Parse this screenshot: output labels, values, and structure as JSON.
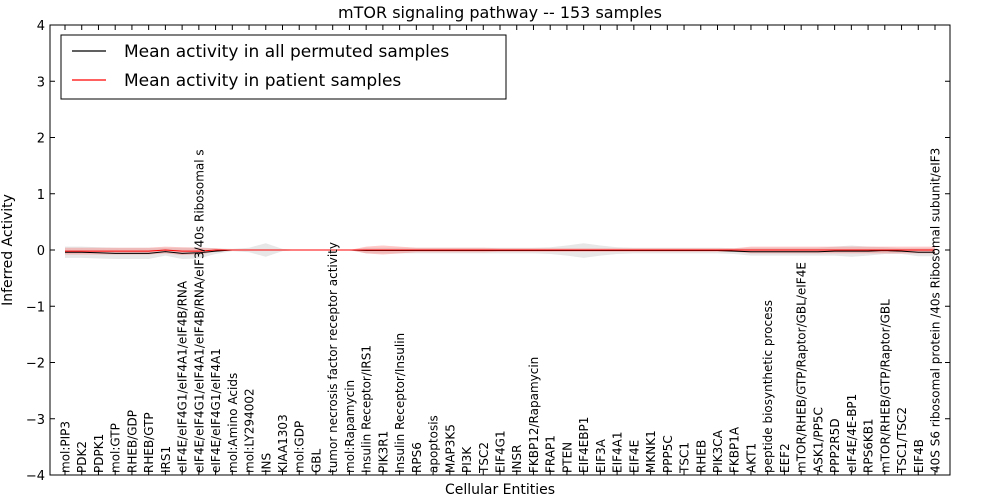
{
  "chart_data": {
    "type": "line",
    "title": "mTOR signaling pathway -- 153 samples",
    "xlabel": "Cellular Entities",
    "ylabel": "Inferred Activity",
    "ylim": [
      -4,
      4
    ],
    "yticks": [
      -4,
      -3,
      -2,
      -1,
      0,
      1,
      2,
      3,
      4
    ],
    "ytick_labels": [
      "−4",
      "−3",
      "−2",
      "−1",
      "0",
      "1",
      "2",
      "3",
      "4"
    ],
    "legend": {
      "placement": "top-left",
      "entries": [
        {
          "label": "Mean activity in all permuted samples",
          "color": "#000000"
        },
        {
          "label": "Mean activity in patient samples",
          "color": "#ff0000"
        }
      ]
    },
    "categories": [
      "mol:PIP3",
      "PDK2",
      "PDPK1",
      "mol:GTP",
      "RHEB/GDP",
      "RHEB/GTP",
      "IRS1",
      "eIF4E/eIF4G1/eIF4A1/eIF4B/RNA",
      "eIF4E/eIF4G1/eIF4A1/eIF4B/RNA/eIF3/40s Ribosomal s",
      "eIF4E/eIF4G1/eIF4A1",
      "mol:Amino Acids",
      "mol:LY294002",
      "INS",
      "KIAA1303",
      "mol:GDP",
      "GBL",
      "tumor necrosis factor receptor activity",
      "mol:Rapamycin",
      "Insulin Receptor/IRS1",
      "PIK3R1",
      "Insulin Receptor/Insulin",
      "RPS6",
      "apoptosis",
      "MAP3K5",
      "PI3K",
      "TSC2",
      "EIF4G1",
      "INSR",
      "FKBP12/Rapamycin",
      "FRAP1",
      "PTEN",
      "EIF4EBP1",
      "EIF3A",
      "EIF4A1",
      "EIF4E",
      "MKNK1",
      "PPP5C",
      "TSC1",
      "RHEB",
      "PIK3CA",
      "FKBP1A",
      "AKT1",
      "peptide biosynthetic process",
      "EEF2",
      "mTOR/RHEB/GTP/Raptor/GBL/eIF4E",
      "ASK1/PP5C",
      "PPP2R5D",
      "eIF4E/4E-BP1",
      "RPS6KB1",
      "mTOR/RHEB/GTP/Raptor/GBL",
      "TSC1/TSC2",
      "EIF4B",
      "40S S6 ribosomal protein /40s Ribosomal subunit/eIF3"
    ],
    "series": [
      {
        "name": "Mean activity in all permuted samples",
        "color": "#000000",
        "values": [
          -0.04,
          -0.04,
          -0.05,
          -0.06,
          -0.06,
          -0.06,
          -0.03,
          -0.06,
          -0.05,
          -0.02,
          0.0,
          0.0,
          0.0,
          0.0,
          0.0,
          0.0,
          0.0,
          0.0,
          -0.01,
          -0.01,
          -0.01,
          -0.01,
          -0.01,
          -0.01,
          -0.01,
          -0.01,
          -0.01,
          -0.01,
          -0.01,
          -0.01,
          -0.01,
          -0.01,
          -0.01,
          -0.01,
          -0.01,
          -0.01,
          -0.01,
          -0.01,
          -0.01,
          -0.01,
          -0.02,
          -0.03,
          -0.03,
          -0.03,
          -0.03,
          -0.03,
          -0.02,
          -0.02,
          -0.02,
          -0.01,
          -0.02,
          -0.04,
          -0.04
        ],
        "band": [
          0.1,
          0.1,
          0.1,
          0.1,
          0.1,
          0.1,
          0.07,
          0.1,
          0.1,
          0.05,
          0.02,
          0.04,
          0.12,
          0.02,
          0.0,
          0.0,
          0.0,
          0.0,
          0.05,
          0.05,
          0.05,
          0.05,
          0.05,
          0.05,
          0.05,
          0.05,
          0.05,
          0.05,
          0.05,
          0.06,
          0.09,
          0.13,
          0.09,
          0.06,
          0.05,
          0.05,
          0.05,
          0.05,
          0.05,
          0.05,
          0.05,
          0.07,
          0.07,
          0.07,
          0.07,
          0.07,
          0.08,
          0.1,
          0.08,
          0.06,
          0.05,
          0.07,
          0.07
        ]
      },
      {
        "name": "Mean activity in patient samples",
        "color": "#ff0000",
        "values": [
          -0.02,
          -0.02,
          -0.02,
          -0.02,
          -0.02,
          -0.02,
          0.0,
          -0.02,
          -0.02,
          0.0,
          0.0,
          0.0,
          0.0,
          0.0,
          0.0,
          0.0,
          0.0,
          0.0,
          0.0,
          0.0,
          0.0,
          0.0,
          0.0,
          0.0,
          0.0,
          0.0,
          0.0,
          0.0,
          0.0,
          0.0,
          0.0,
          0.0,
          0.0,
          0.0,
          0.0,
          0.0,
          0.0,
          0.0,
          0.0,
          0.0,
          0.0,
          0.0,
          0.0,
          0.0,
          0.0,
          0.0,
          0.0,
          0.0,
          0.0,
          0.0,
          0.0,
          0.0,
          0.0
        ],
        "band": [
          0.06,
          0.06,
          0.06,
          0.06,
          0.06,
          0.06,
          0.06,
          0.07,
          0.06,
          0.03,
          0.0,
          0.0,
          0.0,
          0.0,
          0.0,
          0.0,
          0.0,
          0.0,
          0.06,
          0.08,
          0.06,
          0.04,
          0.04,
          0.04,
          0.04,
          0.04,
          0.03,
          0.03,
          0.03,
          0.03,
          0.03,
          0.03,
          0.03,
          0.03,
          0.03,
          0.03,
          0.03,
          0.03,
          0.03,
          0.03,
          0.03,
          0.06,
          0.06,
          0.06,
          0.06,
          0.06,
          0.06,
          0.06,
          0.06,
          0.06,
          0.06,
          0.06,
          0.06
        ]
      }
    ]
  }
}
